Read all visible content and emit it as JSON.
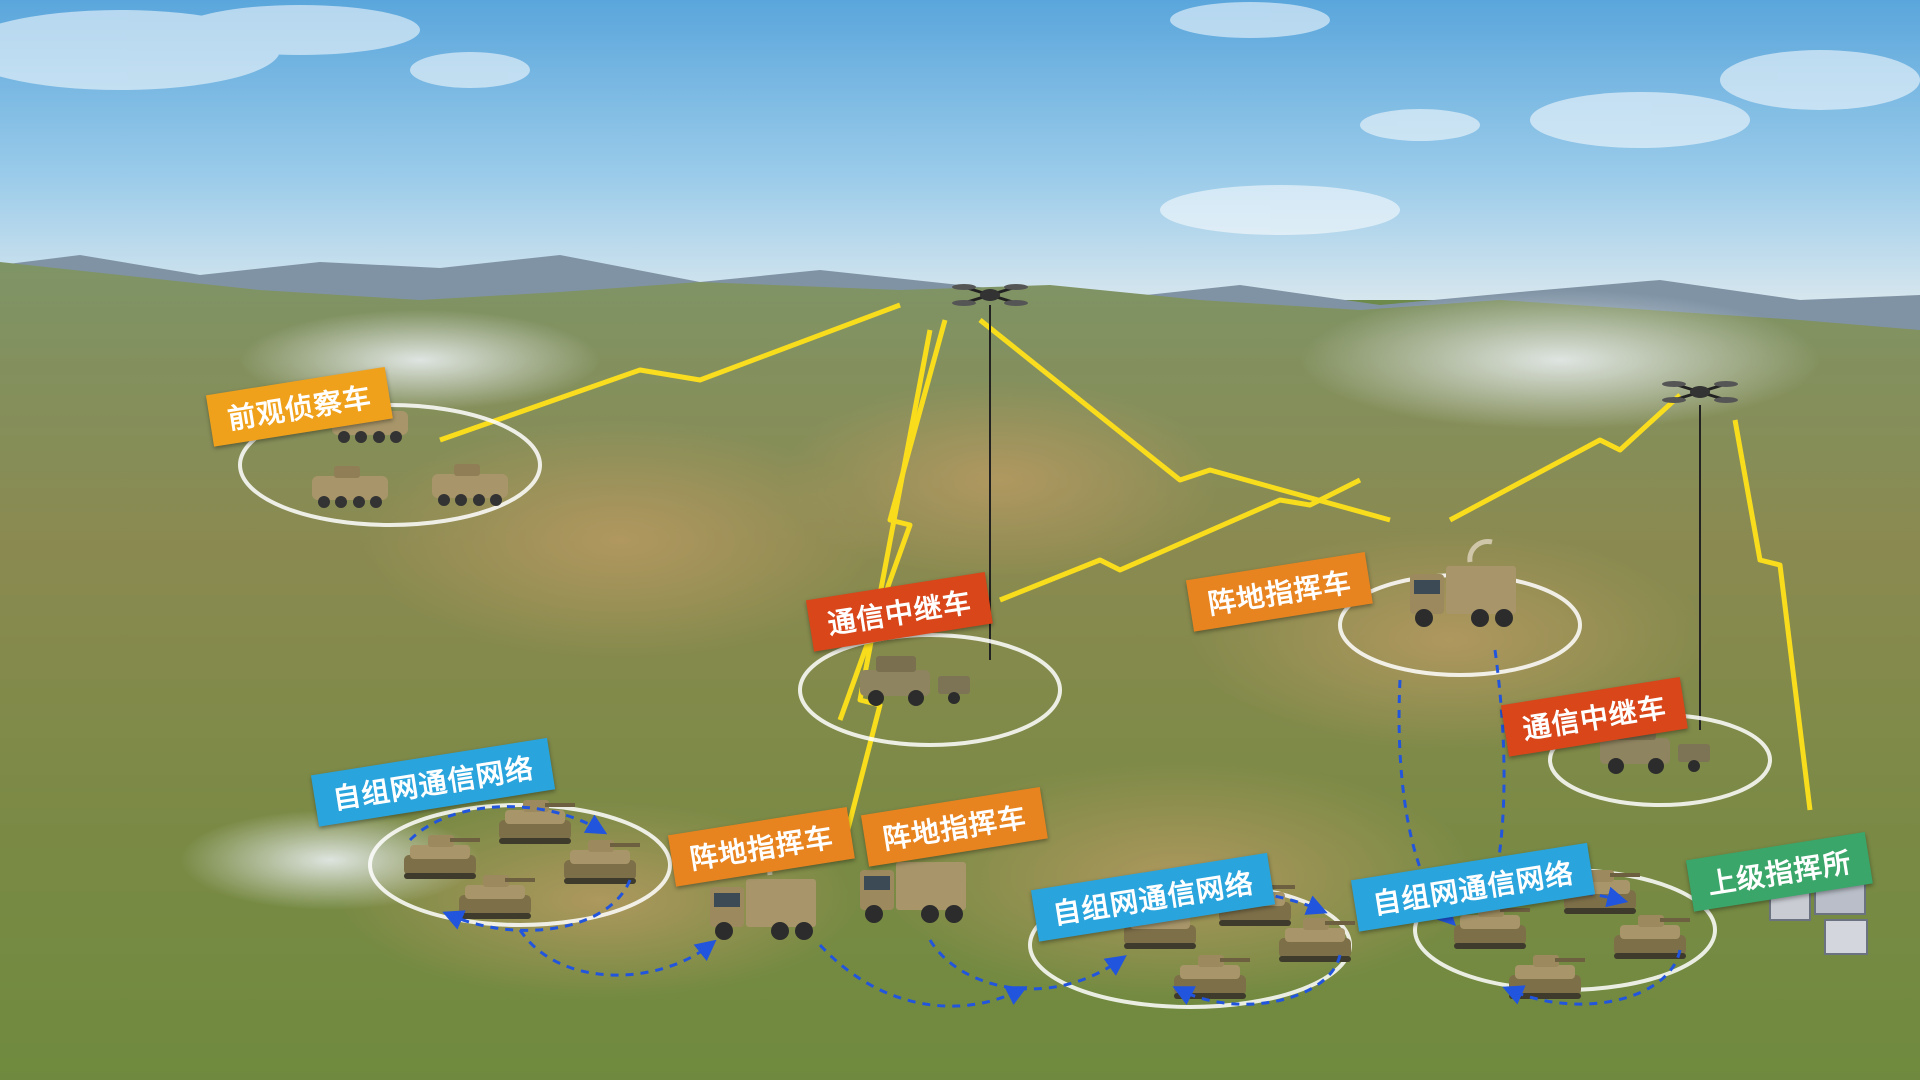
{
  "colors": {
    "recon": "#f0a11c",
    "relay": "#d8461a",
    "command": "#e8841f",
    "network": "#2aa4dd",
    "hq": "#3aa66a",
    "link": "#ffe21a",
    "net_arrow": "#2255dd"
  },
  "labels": {
    "recon_vehicle": "前观侦察车",
    "relay_vehicle_1": "通信中继车",
    "relay_vehicle_2": "通信中继车",
    "command_vehicle_1": "阵地指挥车",
    "command_vehicle_2": "阵地指挥车",
    "command_vehicle_3": "阵地指挥车",
    "adhoc_network_1": "自组网通信网络",
    "adhoc_network_2": "自组网通信网络",
    "adhoc_network_3": "自组网通信网络",
    "superior_hq": "上级指挥所"
  },
  "icons": {
    "drone": "quadcopter-drone-icon",
    "truck": "command-truck-icon",
    "tank": "armored-vehicle-icon",
    "building": "hq-building-icon"
  }
}
